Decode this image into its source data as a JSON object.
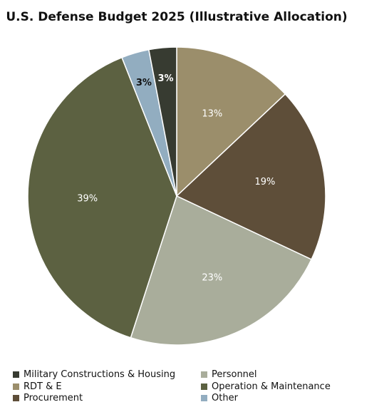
{
  "chart_data": {
    "type": "pie",
    "title": "U.S. Defense Budget 2025 (Illustrative Allocation)",
    "slices": [
      {
        "label": "RDT & E",
        "value": 13,
        "display": "13%",
        "color": "#9b8e6b",
        "label_color": "#ffffff"
      },
      {
        "label": "Procurement",
        "value": 19,
        "display": "19%",
        "color": "#5e4e39",
        "label_color": "#ffffff"
      },
      {
        "label": "Personnel",
        "value": 23,
        "display": "23%",
        "color": "#a9ad9b",
        "label_color": "#ffffff"
      },
      {
        "label": "Operation & Maintenance",
        "value": 39,
        "display": "39%",
        "color": "#5c6141",
        "label_color": "#ffffff"
      },
      {
        "label": "Other",
        "value": 3,
        "display": "3%",
        "color": "#92adc0",
        "label_color": "#111111"
      },
      {
        "label": "Military Constructions & Housing",
        "value": 3,
        "display": "3%",
        "color": "#373b31",
        "label_color": "#ffffff"
      }
    ],
    "legend_position": "bottom",
    "legend": [
      {
        "label": "Military Constructions & Housing",
        "color": "#373b31"
      },
      {
        "label": "Personnel",
        "color": "#a9ad9b"
      },
      {
        "label": "RDT & E",
        "color": "#9b8e6b"
      },
      {
        "label": "Operation & Maintenance",
        "color": "#5c6141"
      },
      {
        "label": "Procurement",
        "color": "#5e4e39"
      },
      {
        "label": "Other",
        "color": "#92adc0"
      }
    ]
  }
}
